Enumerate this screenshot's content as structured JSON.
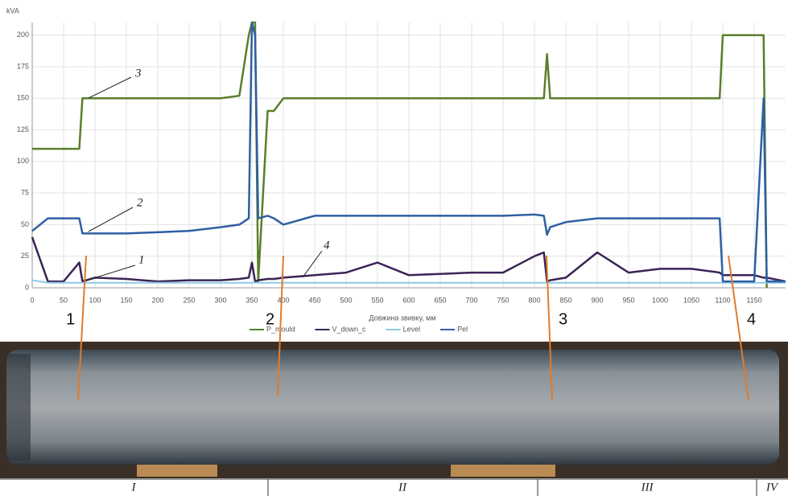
{
  "chart_data": {
    "type": "line",
    "y_label": "kVA",
    "x_label": "Довжина звивку, мм",
    "x": [
      0,
      25,
      50,
      75,
      80,
      100,
      150,
      200,
      250,
      300,
      330,
      345,
      350,
      355,
      360,
      375,
      385,
      400,
      450,
      500,
      550,
      600,
      650,
      700,
      750,
      800,
      815,
      820,
      825,
      850,
      900,
      950,
      1000,
      1050,
      1095,
      1100,
      1150,
      1165,
      1170,
      1200
    ],
    "series": [
      {
        "name": "P_mould",
        "color": "#5a7f2a",
        "values": [
          110,
          110,
          110,
          110,
          150,
          150,
          150,
          150,
          150,
          150,
          152,
          200,
          210,
          210,
          5,
          140,
          140,
          150,
          150,
          150,
          150,
          150,
          150,
          150,
          150,
          150,
          150,
          185,
          150,
          150,
          150,
          150,
          150,
          150,
          150,
          200,
          200,
          200,
          0,
          null
        ]
      },
      {
        "name": "V_down_c",
        "color": "#3b2456",
        "values": [
          40,
          5,
          5,
          20,
          5,
          8,
          7,
          5,
          6,
          6,
          7,
          8,
          20,
          5,
          6,
          7,
          7,
          8,
          10,
          12,
          20,
          10,
          11,
          12,
          12,
          25,
          28,
          5,
          6,
          8,
          28,
          12,
          15,
          15,
          12,
          10,
          10,
          8,
          8,
          5
        ]
      },
      {
        "name": "Level",
        "color": "#8ecae6",
        "values": [
          6,
          4,
          4,
          4,
          4,
          4,
          4,
          4,
          4,
          4,
          4,
          4,
          4,
          4,
          4,
          4,
          4,
          4,
          4,
          4,
          4,
          4,
          4,
          4,
          4,
          4,
          4,
          4,
          4,
          4,
          4,
          4,
          4,
          4,
          4,
          4,
          4,
          4,
          4,
          4
        ]
      },
      {
        "name": "Pel",
        "color": "#2f5fa3",
        "values": [
          45,
          55,
          55,
          55,
          43,
          43,
          43,
          44,
          45,
          48,
          50,
          55,
          210,
          200,
          55,
          57,
          55,
          50,
          57,
          57,
          57,
          57,
          57,
          57,
          57,
          58,
          57,
          42,
          48,
          52,
          55,
          55,
          55,
          55,
          55,
          5,
          5,
          150,
          5,
          5
        ]
      }
    ],
    "xlim": [
      0,
      1200
    ],
    "ylim": [
      0,
      210
    ],
    "xticks": [
      0,
      50,
      100,
      150,
      200,
      250,
      300,
      350,
      400,
      450,
      500,
      550,
      600,
      650,
      700,
      750,
      800,
      850,
      900,
      950,
      1000,
      1050,
      1100,
      1150
    ],
    "yticks": [
      0,
      25,
      50,
      75,
      100,
      125,
      150,
      175,
      200
    ],
    "grid": true,
    "curve_labels": [
      "3",
      "2",
      "1",
      "4"
    ],
    "markers": [
      "1",
      "2",
      "3",
      "4"
    ],
    "sections": [
      "I",
      "II",
      "III",
      "IV"
    ]
  }
}
